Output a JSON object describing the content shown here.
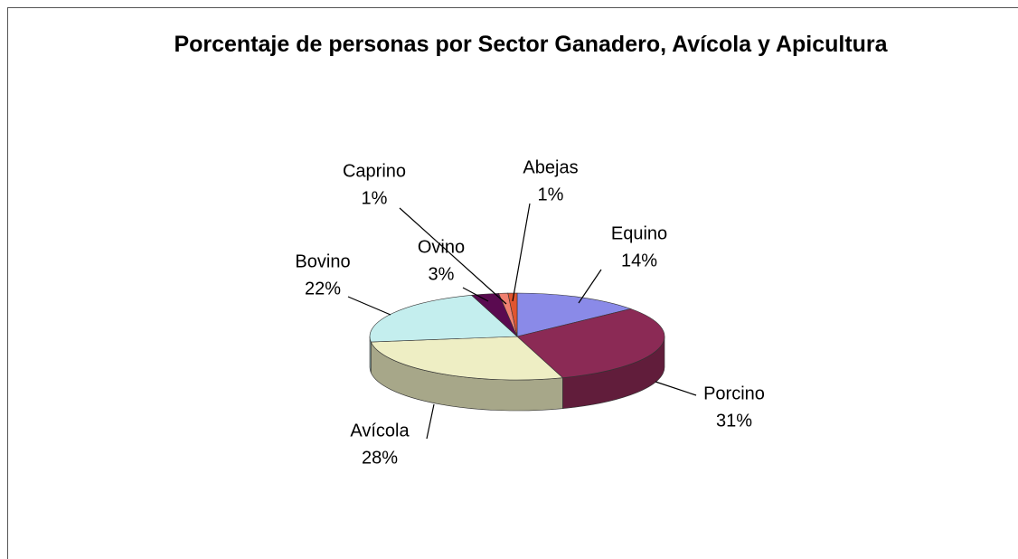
{
  "chart_data": {
    "type": "pie3d",
    "title": "Porcentaje de personas por Sector Ganadero, Avícola y Apicultura",
    "categories": [
      "Equino",
      "Porcino",
      "Avícola",
      "Bovino",
      "Ovino",
      "Caprino",
      "Abejas"
    ],
    "values": [
      14,
      31,
      28,
      22,
      3,
      1,
      1
    ],
    "value_labels": [
      "14%",
      "31%",
      "28%",
      "22%",
      "3%",
      "1%",
      "1%"
    ],
    "colors": [
      "#8a8ae8",
      "#8b2a55",
      "#eeeec4",
      "#c4eeee",
      "#5a0a50",
      "#f08070",
      "#e05530"
    ]
  }
}
